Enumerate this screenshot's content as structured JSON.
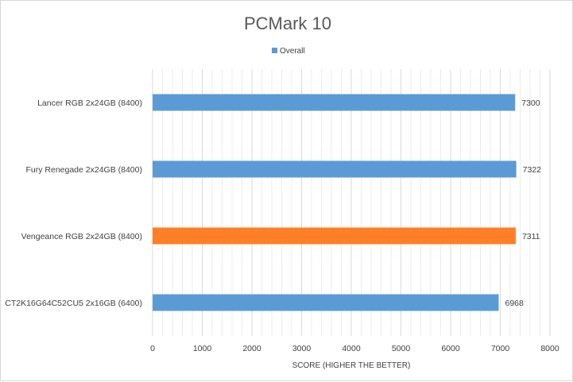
{
  "chart_data": {
    "type": "bar",
    "orientation": "horizontal",
    "title": "PCMark 10",
    "xlabel": "SCORE (HIGHER THE BETTER)",
    "ylabel": "",
    "xlim": [
      0,
      8000
    ],
    "ticks": [
      0,
      1000,
      2000,
      3000,
      4000,
      5000,
      6000,
      7000,
      8000
    ],
    "grid": true,
    "legend": {
      "position": "top-center",
      "entries": [
        "Overall"
      ]
    },
    "categories": [
      "Lancer RGB 2x24GB (8400)",
      "Fury Renegade 2x24GB (8400)",
      "Vengeance RGB 2x24GB (8400)",
      "CT2K16G64C52CU5 2x16GB (6400)"
    ],
    "series": [
      {
        "name": "Overall",
        "values": [
          7300,
          7322,
          7311,
          6968
        ],
        "data_labels": [
          "7300",
          "7322",
          "7311",
          "6968"
        ],
        "color": "#5b9bd5",
        "highlight_index": 2,
        "highlight_color": "#ff7f27"
      }
    ]
  }
}
